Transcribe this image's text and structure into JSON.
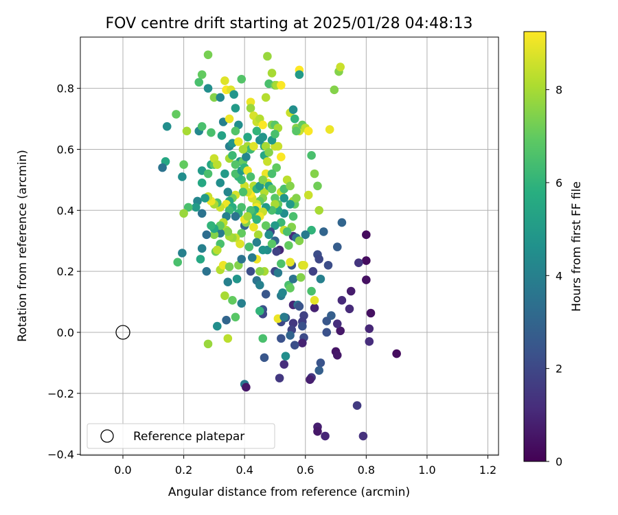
{
  "chart_data": {
    "type": "scatter",
    "title": "FOV centre drift starting at 2025/01/28 04:48:13",
    "xlabel": "Angular distance from reference (arcmin)",
    "ylabel": "Rotation from reference (arcmin)",
    "xlim": [
      -0.14,
      1.235
    ],
    "ylim": [
      -0.403,
      0.968
    ],
    "xticks": [
      "0.0",
      "0.2",
      "0.4",
      "0.6",
      "0.8",
      "1.0",
      "1.2"
    ],
    "xtick_values": [
      0.0,
      0.2,
      0.4,
      0.6,
      0.8,
      1.0,
      1.2
    ],
    "yticks": [
      "−0.4",
      "−0.2",
      "0.0",
      "0.2",
      "0.4",
      "0.6",
      "0.8"
    ],
    "ytick_values": [
      -0.4,
      -0.2,
      0.0,
      0.2,
      0.4,
      0.6,
      0.8
    ],
    "grid": true,
    "colormap": "viridis",
    "colorbar": {
      "label": "Hours from first FF file",
      "range": [
        0,
        9.25
      ],
      "ticks": [
        "0",
        "2",
        "4",
        "6",
        "8"
      ],
      "tick_values": [
        0,
        2,
        4,
        6,
        8
      ]
    },
    "reference_point": {
      "x": 0.0,
      "y": 0.0
    },
    "legend": {
      "entries": [
        "Reference platepar"
      ],
      "location": "lower-left"
    },
    "points": [
      [
        0.9,
        -0.07,
        0.3
      ],
      [
        0.8,
        0.32,
        0.3
      ],
      [
        0.8,
        0.235,
        0.3
      ],
      [
        0.8,
        0.172,
        0.4
      ],
      [
        0.815,
        0.063,
        0.4
      ],
      [
        0.81,
        0.012,
        1.0
      ],
      [
        0.81,
        -0.03,
        1.2
      ],
      [
        0.79,
        -0.34,
        1.3
      ],
      [
        0.77,
        -0.24,
        1.6
      ],
      [
        0.775,
        0.228,
        1.4
      ],
      [
        0.75,
        0.135,
        0.7
      ],
      [
        0.745,
        0.077,
        1.1
      ],
      [
        0.72,
        0.105,
        1.1
      ],
      [
        0.715,
        0.005,
        0.6
      ],
      [
        0.705,
        0.028,
        1.2
      ],
      [
        0.7,
        -0.063,
        0.5
      ],
      [
        0.705,
        -0.075,
        0.6
      ],
      [
        0.685,
        0.055,
        2.8
      ],
      [
        0.67,
        0.037,
        2.5
      ],
      [
        0.67,
        0.0,
        2.3
      ],
      [
        0.665,
        -0.34,
        1.0
      ],
      [
        0.64,
        -0.31,
        0.8
      ],
      [
        0.64,
        -0.325,
        0.6
      ],
      [
        0.65,
        -0.1,
        2.4
      ],
      [
        0.645,
        -0.125,
        2.8
      ],
      [
        0.62,
        -0.148,
        1.5
      ],
      [
        0.615,
        -0.155,
        0.8
      ],
      [
        0.63,
        0.08,
        0.9
      ],
      [
        0.595,
        0.055,
        1.8
      ],
      [
        0.59,
        0.035,
        1.7
      ],
      [
        0.59,
        0.02,
        2.3
      ],
      [
        0.595,
        -0.017,
        2.1
      ],
      [
        0.59,
        -0.035,
        0.9
      ],
      [
        0.56,
        0.09,
        1.0
      ],
      [
        0.56,
        0.03,
        1.5
      ],
      [
        0.555,
        0.008,
        1.8
      ],
      [
        0.565,
        -0.042,
        2.2
      ],
      [
        0.55,
        -0.01,
        3.0
      ],
      [
        0.535,
        0.048,
        2.5
      ],
      [
        0.52,
        0.034,
        2.0
      ],
      [
        0.515,
        -0.15,
        1.5
      ],
      [
        0.53,
        -0.105,
        1.2
      ],
      [
        0.535,
        -0.078,
        4.5
      ],
      [
        0.52,
        -0.02,
        2.3
      ],
      [
        0.465,
        -0.083,
        2.5
      ],
      [
        0.46,
        -0.02,
        6.5
      ],
      [
        0.46,
        0.075,
        2.3
      ],
      [
        0.46,
        0.06,
        2.0
      ],
      [
        0.47,
        0.125,
        2.5
      ],
      [
        0.4,
        -0.17,
        3.7
      ],
      [
        0.405,
        -0.18,
        0.6
      ],
      [
        0.42,
        0.2,
        2.2
      ],
      [
        0.44,
        0.17,
        3.5
      ],
      [
        0.45,
        0.155,
        4.0
      ],
      [
        0.34,
        0.04,
        3.0
      ],
      [
        0.345,
        -0.02,
        8.3
      ],
      [
        0.31,
        0.02,
        4.5
      ],
      [
        0.28,
        -0.038,
        7.8
      ],
      [
        0.39,
        0.095,
        4.0
      ],
      [
        0.37,
        0.05,
        6.8
      ],
      [
        0.36,
        0.105,
        7.0
      ],
      [
        0.345,
        0.165,
        4.0
      ],
      [
        0.335,
        0.12,
        8.0
      ],
      [
        0.32,
        0.205,
        8.2
      ],
      [
        0.33,
        0.22,
        9.0
      ],
      [
        0.35,
        0.215,
        7.3
      ],
      [
        0.375,
        0.175,
        4.8
      ],
      [
        0.38,
        0.22,
        7.5
      ],
      [
        0.39,
        0.24,
        3.5
      ],
      [
        0.4,
        0.35,
        3.0
      ],
      [
        0.42,
        0.39,
        2.8
      ],
      [
        0.5,
        0.2,
        2.0
      ],
      [
        0.51,
        0.195,
        3.8
      ],
      [
        0.52,
        0.12,
        3.8
      ],
      [
        0.525,
        0.13,
        4.2
      ],
      [
        0.545,
        0.155,
        6.5
      ],
      [
        0.55,
        0.145,
        7.0
      ],
      [
        0.56,
        0.175,
        3.5
      ],
      [
        0.575,
        0.09,
        3.5
      ],
      [
        0.58,
        0.085,
        2.4
      ],
      [
        0.585,
        0.18,
        7.5
      ],
      [
        0.59,
        0.22,
        8.5
      ],
      [
        0.595,
        0.22,
        8.8
      ],
      [
        0.63,
        0.105,
        8.9
      ],
      [
        0.62,
        0.135,
        6.5
      ],
      [
        0.625,
        0.2,
        1.8
      ],
      [
        0.64,
        0.255,
        2.2
      ],
      [
        0.645,
        0.24,
        2.0
      ],
      [
        0.65,
        0.175,
        4.0
      ],
      [
        0.675,
        0.22,
        2.2
      ],
      [
        0.66,
        0.33,
        3.0
      ],
      [
        0.705,
        0.28,
        2.7
      ],
      [
        0.72,
        0.36,
        3.0
      ],
      [
        0.56,
        0.315,
        1.2
      ],
      [
        0.57,
        0.31,
        3.5
      ],
      [
        0.58,
        0.3,
        7.5
      ],
      [
        0.555,
        0.345,
        7.5
      ],
      [
        0.52,
        0.36,
        6.2
      ],
      [
        0.53,
        0.335,
        8.5
      ],
      [
        0.515,
        0.27,
        1.0
      ],
      [
        0.505,
        0.265,
        1.8
      ],
      [
        0.545,
        0.285,
        7.0
      ],
      [
        0.555,
        0.22,
        2.4
      ],
      [
        0.55,
        0.23,
        8.9
      ],
      [
        0.52,
        0.225,
        6.6
      ],
      [
        0.5,
        0.3,
        3.0
      ],
      [
        0.5,
        0.35,
        5.0
      ],
      [
        0.485,
        0.33,
        2.0
      ],
      [
        0.475,
        0.27,
        4.5
      ],
      [
        0.465,
        0.2,
        8.0
      ],
      [
        0.45,
        0.2,
        7.5
      ],
      [
        0.44,
        0.24,
        9.0
      ],
      [
        0.425,
        0.245,
        3.8
      ],
      [
        0.445,
        0.32,
        8.0
      ],
      [
        0.43,
        0.345,
        9.0
      ],
      [
        0.44,
        0.295,
        4.0
      ],
      [
        0.415,
        0.28,
        6.5
      ],
      [
        0.405,
        0.36,
        7.5
      ],
      [
        0.4,
        0.37,
        9.0
      ],
      [
        0.39,
        0.325,
        7.0
      ],
      [
        0.385,
        0.29,
        8.8
      ],
      [
        0.37,
        0.31,
        8.5
      ],
      [
        0.36,
        0.31,
        7.8
      ],
      [
        0.35,
        0.315,
        8.0
      ],
      [
        0.34,
        0.335,
        8.0
      ],
      [
        0.345,
        0.33,
        7.5
      ],
      [
        0.32,
        0.325,
        3.8
      ],
      [
        0.3,
        0.32,
        7.5
      ],
      [
        0.31,
        0.27,
        8.5
      ],
      [
        0.305,
        0.265,
        7.2
      ],
      [
        0.32,
        0.29,
        6.5
      ],
      [
        0.31,
        0.27,
        8.3
      ],
      [
        0.26,
        0.275,
        4.0
      ],
      [
        0.255,
        0.24,
        5.5
      ],
      [
        0.275,
        0.2,
        3.5
      ],
      [
        0.275,
        0.32,
        3.3
      ],
      [
        0.26,
        0.39,
        3.5
      ],
      [
        0.245,
        0.43,
        4.2
      ],
      [
        0.24,
        0.41,
        5.0
      ],
      [
        0.215,
        0.41,
        6.5
      ],
      [
        0.2,
        0.39,
        7.8
      ],
      [
        0.195,
        0.26,
        4.0
      ],
      [
        0.18,
        0.23,
        6.5
      ],
      [
        0.2,
        0.55,
        7.0
      ],
      [
        0.195,
        0.51,
        4.5
      ],
      [
        0.14,
        0.56,
        5.5
      ],
      [
        0.13,
        0.54,
        3.5
      ],
      [
        0.145,
        0.675,
        4.5
      ],
      [
        0.175,
        0.715,
        7.0
      ],
      [
        0.21,
        0.66,
        8.0
      ],
      [
        0.25,
        0.66,
        4.3
      ],
      [
        0.26,
        0.675,
        6.5
      ],
      [
        0.26,
        0.845,
        7.0
      ],
      [
        0.25,
        0.82,
        6.5
      ],
      [
        0.28,
        0.91,
        7.3
      ],
      [
        0.28,
        0.8,
        4.5
      ],
      [
        0.29,
        0.655,
        6.5
      ],
      [
        0.3,
        0.77,
        7.5
      ],
      [
        0.32,
        0.77,
        4.3
      ],
      [
        0.335,
        0.825,
        8.8
      ],
      [
        0.34,
        0.795,
        9.2
      ],
      [
        0.355,
        0.795,
        8.8
      ],
      [
        0.365,
        0.78,
        4.8
      ],
      [
        0.37,
        0.735,
        5.0
      ],
      [
        0.33,
        0.69,
        4.0
      ],
      [
        0.325,
        0.645,
        5.3
      ],
      [
        0.35,
        0.61,
        4.0
      ],
      [
        0.36,
        0.62,
        4.8
      ],
      [
        0.39,
        0.83,
        6.7
      ],
      [
        0.38,
        0.68,
        4.5
      ],
      [
        0.38,
        0.625,
        9.0
      ],
      [
        0.385,
        0.56,
        5.0
      ],
      [
        0.4,
        0.6,
        6.5
      ],
      [
        0.395,
        0.56,
        7.0
      ],
      [
        0.41,
        0.61,
        8.0
      ],
      [
        0.405,
        0.575,
        4.2
      ],
      [
        0.42,
        0.6,
        6.3
      ],
      [
        0.42,
        0.755,
        9.0
      ],
      [
        0.42,
        0.735,
        7.8
      ],
      [
        0.43,
        0.71,
        8.7
      ],
      [
        0.43,
        0.61,
        8.8
      ],
      [
        0.44,
        0.69,
        8.5
      ],
      [
        0.45,
        0.7,
        8.2
      ],
      [
        0.46,
        0.68,
        9.2
      ],
      [
        0.465,
        0.61,
        5.5
      ],
      [
        0.465,
        0.58,
        5.5
      ],
      [
        0.47,
        0.52,
        9.0
      ],
      [
        0.475,
        0.56,
        8.5
      ],
      [
        0.475,
        0.905,
        7.8
      ],
      [
        0.47,
        0.77,
        8.2
      ],
      [
        0.48,
        0.815,
        6.5
      ],
      [
        0.49,
        0.85,
        8.0
      ],
      [
        0.5,
        0.81,
        7.2
      ],
      [
        0.505,
        0.81,
        8.0
      ],
      [
        0.52,
        0.81,
        9.2
      ],
      [
        0.49,
        0.68,
        7.5
      ],
      [
        0.5,
        0.68,
        6.8
      ],
      [
        0.51,
        0.67,
        8.0
      ],
      [
        0.5,
        0.61,
        8.5
      ],
      [
        0.51,
        0.61,
        8.5
      ],
      [
        0.52,
        0.575,
        9.2
      ],
      [
        0.505,
        0.54,
        7.0
      ],
      [
        0.49,
        0.52,
        6.5
      ],
      [
        0.475,
        0.49,
        8.8
      ],
      [
        0.465,
        0.46,
        8.2
      ],
      [
        0.46,
        0.44,
        7.5
      ],
      [
        0.45,
        0.43,
        7.0
      ],
      [
        0.44,
        0.42,
        8.5
      ],
      [
        0.44,
        0.41,
        9.1
      ],
      [
        0.435,
        0.4,
        5.5
      ],
      [
        0.43,
        0.385,
        6.0
      ],
      [
        0.425,
        0.44,
        8.7
      ],
      [
        0.42,
        0.455,
        9.2
      ],
      [
        0.41,
        0.46,
        8.5
      ],
      [
        0.4,
        0.48,
        8.6
      ],
      [
        0.395,
        0.46,
        6.5
      ],
      [
        0.39,
        0.5,
        6.3
      ],
      [
        0.38,
        0.51,
        6.0
      ],
      [
        0.37,
        0.52,
        6.5
      ],
      [
        0.37,
        0.45,
        8.7
      ],
      [
        0.36,
        0.44,
        7.2
      ],
      [
        0.35,
        0.43,
        5.5
      ],
      [
        0.345,
        0.46,
        4.2
      ],
      [
        0.34,
        0.42,
        9.0
      ],
      [
        0.32,
        0.41,
        8.5
      ],
      [
        0.31,
        0.425,
        6.5
      ],
      [
        0.3,
        0.42,
        8.0
      ],
      [
        0.29,
        0.43,
        9.0
      ],
      [
        0.28,
        0.445,
        8.5
      ],
      [
        0.27,
        0.44,
        5.0
      ],
      [
        0.26,
        0.49,
        5.5
      ],
      [
        0.26,
        0.53,
        5.0
      ],
      [
        0.28,
        0.52,
        6.5
      ],
      [
        0.29,
        0.55,
        5.5
      ],
      [
        0.3,
        0.55,
        6.8
      ],
      [
        0.3,
        0.57,
        8.5
      ],
      [
        0.31,
        0.55,
        8.3
      ],
      [
        0.32,
        0.49,
        4.5
      ],
      [
        0.335,
        0.52,
        5.0
      ],
      [
        0.35,
        0.57,
        8.0
      ],
      [
        0.36,
        0.58,
        6.2
      ],
      [
        0.37,
        0.55,
        6.7
      ],
      [
        0.39,
        0.53,
        5.0
      ],
      [
        0.4,
        0.54,
        6.0
      ],
      [
        0.41,
        0.53,
        9.0
      ],
      [
        0.42,
        0.51,
        6.5
      ],
      [
        0.43,
        0.48,
        8.2
      ],
      [
        0.44,
        0.47,
        6.0
      ],
      [
        0.45,
        0.48,
        5.0
      ],
      [
        0.46,
        0.5,
        7.5
      ],
      [
        0.48,
        0.48,
        5.5
      ],
      [
        0.49,
        0.47,
        7.0
      ],
      [
        0.5,
        0.44,
        6.8
      ],
      [
        0.51,
        0.42,
        7.0
      ],
      [
        0.52,
        0.46,
        8.5
      ],
      [
        0.53,
        0.47,
        6.5
      ],
      [
        0.54,
        0.5,
        8.3
      ],
      [
        0.55,
        0.48,
        7.5
      ],
      [
        0.56,
        0.43,
        8.0
      ],
      [
        0.565,
        0.42,
        7.0
      ],
      [
        0.57,
        0.44,
        7.5
      ],
      [
        0.56,
        0.38,
        6.5
      ],
      [
        0.53,
        0.39,
        4.5
      ],
      [
        0.51,
        0.4,
        5.5
      ],
      [
        0.5,
        0.42,
        8.0
      ],
      [
        0.49,
        0.4,
        6.5
      ],
      [
        0.47,
        0.41,
        5.0
      ],
      [
        0.46,
        0.395,
        8.5
      ],
      [
        0.45,
        0.38,
        9.0
      ],
      [
        0.44,
        0.37,
        6.0
      ],
      [
        0.42,
        0.4,
        6.5
      ],
      [
        0.41,
        0.38,
        8.0
      ],
      [
        0.39,
        0.41,
        6.5
      ],
      [
        0.38,
        0.39,
        6.0
      ],
      [
        0.37,
        0.38,
        3.5
      ],
      [
        0.36,
        0.41,
        5.8
      ],
      [
        0.35,
        0.4,
        6.2
      ],
      [
        0.34,
        0.38,
        4.0
      ],
      [
        0.33,
        0.36,
        8.3
      ],
      [
        0.32,
        0.35,
        7.0
      ],
      [
        0.3,
        0.34,
        5.5
      ],
      [
        0.29,
        0.35,
        6.0
      ],
      [
        0.35,
        0.7,
        9.0
      ],
      [
        0.37,
        0.66,
        6.7
      ],
      [
        0.395,
        0.6,
        8.0
      ],
      [
        0.41,
        0.64,
        5.5
      ],
      [
        0.44,
        0.66,
        6.0
      ],
      [
        0.45,
        0.63,
        4.5
      ],
      [
        0.46,
        0.64,
        4.8
      ],
      [
        0.47,
        0.61,
        8.0
      ],
      [
        0.48,
        0.59,
        7.5
      ],
      [
        0.49,
        0.63,
        5.0
      ],
      [
        0.5,
        0.65,
        6.5
      ],
      [
        0.55,
        0.72,
        8.5
      ],
      [
        0.56,
        0.73,
        4.5
      ],
      [
        0.565,
        0.7,
        6.0
      ],
      [
        0.57,
        0.67,
        7.5
      ],
      [
        0.58,
        0.66,
        8.5
      ],
      [
        0.59,
        0.68,
        7.0
      ],
      [
        0.6,
        0.67,
        8.3
      ],
      [
        0.61,
        0.66,
        9.2
      ],
      [
        0.57,
        0.66,
        6.8
      ],
      [
        0.58,
        0.86,
        9.3
      ],
      [
        0.58,
        0.845,
        5.0
      ],
      [
        0.62,
        0.58,
        6.5
      ],
      [
        0.63,
        0.52,
        7.5
      ],
      [
        0.64,
        0.48,
        7.2
      ],
      [
        0.61,
        0.45,
        8.5
      ],
      [
        0.645,
        0.4,
        8.0
      ],
      [
        0.62,
        0.335,
        6.0
      ],
      [
        0.6,
        0.32,
        3.8
      ],
      [
        0.54,
        0.33,
        6.5
      ],
      [
        0.68,
        0.665,
        9.0
      ],
      [
        0.695,
        0.795,
        7.5
      ],
      [
        0.71,
        0.855,
        7.5
      ],
      [
        0.715,
        0.87,
        8.5
      ],
      [
        0.55,
        0.42,
        5.0
      ],
      [
        0.53,
        0.44,
        4.8
      ],
      [
        0.47,
        0.35,
        7.0
      ],
      [
        0.48,
        0.32,
        4.5
      ],
      [
        0.49,
        0.29,
        6.8
      ],
      [
        0.46,
        0.27,
        4.7
      ],
      [
        0.51,
        0.045,
        9.0
      ],
      [
        0.53,
        0.05,
        3.8
      ],
      [
        0.45,
        0.07,
        6.0
      ]
    ]
  }
}
